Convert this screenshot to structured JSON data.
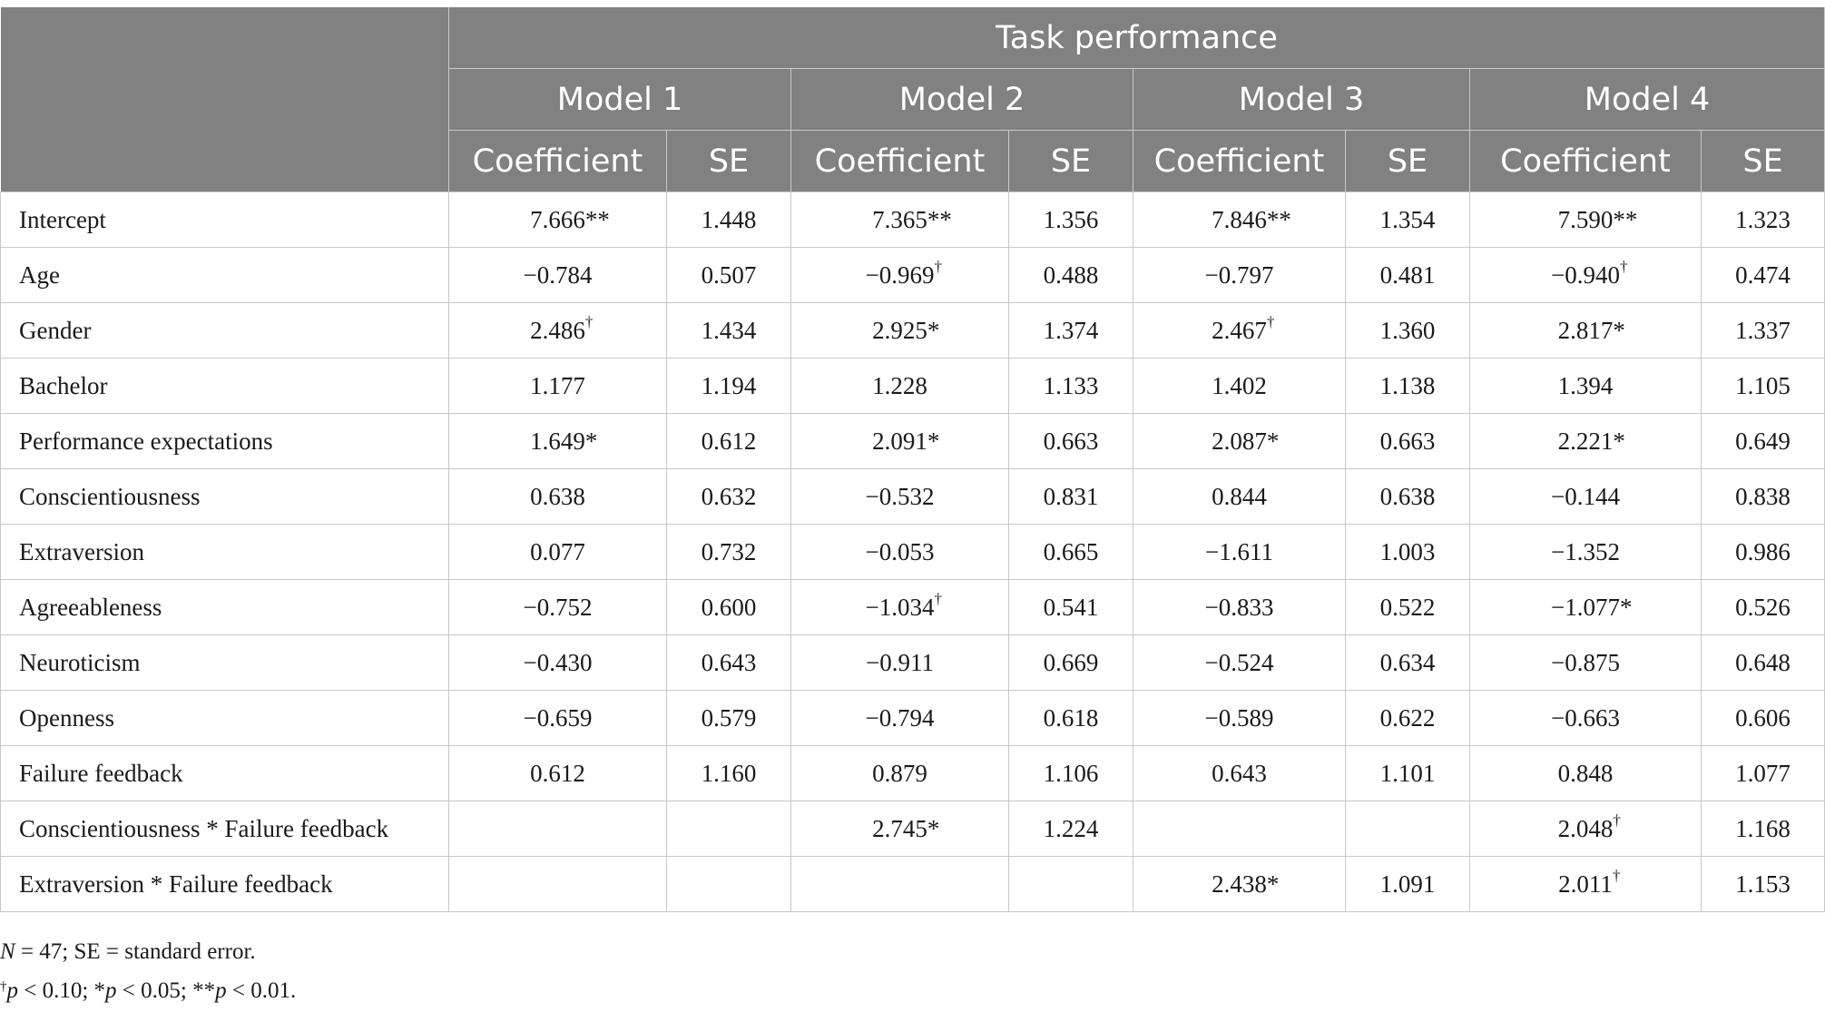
{
  "header": {
    "outcome": "Task performance",
    "models": [
      "Model 1",
      "Model 2",
      "Model 3",
      "Model 4"
    ],
    "coef_label": "Coefficient",
    "se_label": "SE"
  },
  "rows": [
    {
      "label": "Intercept",
      "cells": [
        [
          "7.666",
          "**"
        ],
        [
          "1.448",
          ""
        ],
        [
          "7.365",
          "**"
        ],
        [
          "1.356",
          ""
        ],
        [
          "7.846",
          "**"
        ],
        [
          "1.354",
          ""
        ],
        [
          "7.590",
          "**"
        ],
        [
          "1.323",
          ""
        ]
      ]
    },
    {
      "label": "Age",
      "cells": [
        [
          "−0.784",
          ""
        ],
        [
          "0.507",
          ""
        ],
        [
          "−0.969",
          "†"
        ],
        [
          "0.488",
          ""
        ],
        [
          "−0.797",
          ""
        ],
        [
          "0.481",
          ""
        ],
        [
          "−0.940",
          "†"
        ],
        [
          "0.474",
          ""
        ]
      ]
    },
    {
      "label": "Gender",
      "cells": [
        [
          "2.486",
          "†"
        ],
        [
          "1.434",
          ""
        ],
        [
          "2.925",
          "*"
        ],
        [
          "1.374",
          ""
        ],
        [
          "2.467",
          "†"
        ],
        [
          "1.360",
          ""
        ],
        [
          "2.817",
          "*"
        ],
        [
          "1.337",
          ""
        ]
      ]
    },
    {
      "label": "Bachelor",
      "cells": [
        [
          "1.177",
          ""
        ],
        [
          "1.194",
          ""
        ],
        [
          "1.228",
          ""
        ],
        [
          "1.133",
          ""
        ],
        [
          "1.402",
          ""
        ],
        [
          "1.138",
          ""
        ],
        [
          "1.394",
          ""
        ],
        [
          "1.105",
          ""
        ]
      ]
    },
    {
      "label": "Performance expectations",
      "cells": [
        [
          "1.649",
          "*"
        ],
        [
          "0.612",
          ""
        ],
        [
          "2.091",
          "*"
        ],
        [
          "0.663",
          ""
        ],
        [
          "2.087",
          "*"
        ],
        [
          "0.663",
          ""
        ],
        [
          "2.221",
          "*"
        ],
        [
          "0.649",
          ""
        ]
      ]
    },
    {
      "label": "Conscientiousness",
      "cells": [
        [
          "0.638",
          ""
        ],
        [
          "0.632",
          ""
        ],
        [
          "−0.532",
          ""
        ],
        [
          "0.831",
          ""
        ],
        [
          "0.844",
          ""
        ],
        [
          "0.638",
          ""
        ],
        [
          "−0.144",
          ""
        ],
        [
          "0.838",
          ""
        ]
      ]
    },
    {
      "label": "Extraversion",
      "cells": [
        [
          "0.077",
          ""
        ],
        [
          "0.732",
          ""
        ],
        [
          "−0.053",
          ""
        ],
        [
          "0.665",
          ""
        ],
        [
          "−1.611",
          ""
        ],
        [
          "1.003",
          ""
        ],
        [
          "−1.352",
          ""
        ],
        [
          "0.986",
          ""
        ]
      ]
    },
    {
      "label": "Agreeableness",
      "cells": [
        [
          "−0.752",
          ""
        ],
        [
          "0.600",
          ""
        ],
        [
          "−1.034",
          "†"
        ],
        [
          "0.541",
          ""
        ],
        [
          "−0.833",
          ""
        ],
        [
          "0.522",
          ""
        ],
        [
          "−1.077",
          "*"
        ],
        [
          "0.526",
          ""
        ]
      ]
    },
    {
      "label": "Neuroticism",
      "cells": [
        [
          "−0.430",
          ""
        ],
        [
          "0.643",
          ""
        ],
        [
          "−0.911",
          ""
        ],
        [
          "0.669",
          ""
        ],
        [
          "−0.524",
          ""
        ],
        [
          "0.634",
          ""
        ],
        [
          "−0.875",
          ""
        ],
        [
          "0.648",
          ""
        ]
      ]
    },
    {
      "label": "Openness",
      "cells": [
        [
          "−0.659",
          ""
        ],
        [
          "0.579",
          ""
        ],
        [
          "−0.794",
          ""
        ],
        [
          "0.618",
          ""
        ],
        [
          "−0.589",
          ""
        ],
        [
          "0.622",
          ""
        ],
        [
          "−0.663",
          ""
        ],
        [
          "0.606",
          ""
        ]
      ]
    },
    {
      "label": "Failure feedback",
      "cells": [
        [
          "0.612",
          ""
        ],
        [
          "1.160",
          ""
        ],
        [
          "0.879",
          ""
        ],
        [
          "1.106",
          ""
        ],
        [
          "0.643",
          ""
        ],
        [
          "1.101",
          ""
        ],
        [
          "0.848",
          ""
        ],
        [
          "1.077",
          ""
        ]
      ]
    },
    {
      "label": "Conscientiousness * Failure feedback",
      "cells": [
        [
          "",
          ""
        ],
        [
          "",
          ""
        ],
        [
          "2.745",
          "*"
        ],
        [
          "1.224",
          ""
        ],
        [
          "",
          ""
        ],
        [
          "",
          ""
        ],
        [
          "2.048",
          "†"
        ],
        [
          "1.168",
          ""
        ]
      ]
    },
    {
      "label": "Extraversion * Failure feedback",
      "cells": [
        [
          "",
          ""
        ],
        [
          "",
          ""
        ],
        [
          "",
          ""
        ],
        [
          "",
          ""
        ],
        [
          "2.438",
          "*"
        ],
        [
          "1.091",
          ""
        ],
        [
          "2.011",
          "†"
        ],
        [
          "1.153",
          ""
        ]
      ]
    }
  ],
  "notes": {
    "line1": {
      "n_symbol": "N",
      "n_text": " = 47; SE = standard error."
    },
    "line2": {
      "dagger": "†",
      "p1": "p",
      "t1": " < 0.10; *",
      "p2": "p",
      "t2": " < 0.05; **",
      "p3": "p",
      "t3": " < 0.01."
    }
  },
  "colors": {
    "header_bg": "#808180",
    "header_text": "#ffffff",
    "grid": "#c8c8c8",
    "body_text": "#1a1a1a"
  }
}
